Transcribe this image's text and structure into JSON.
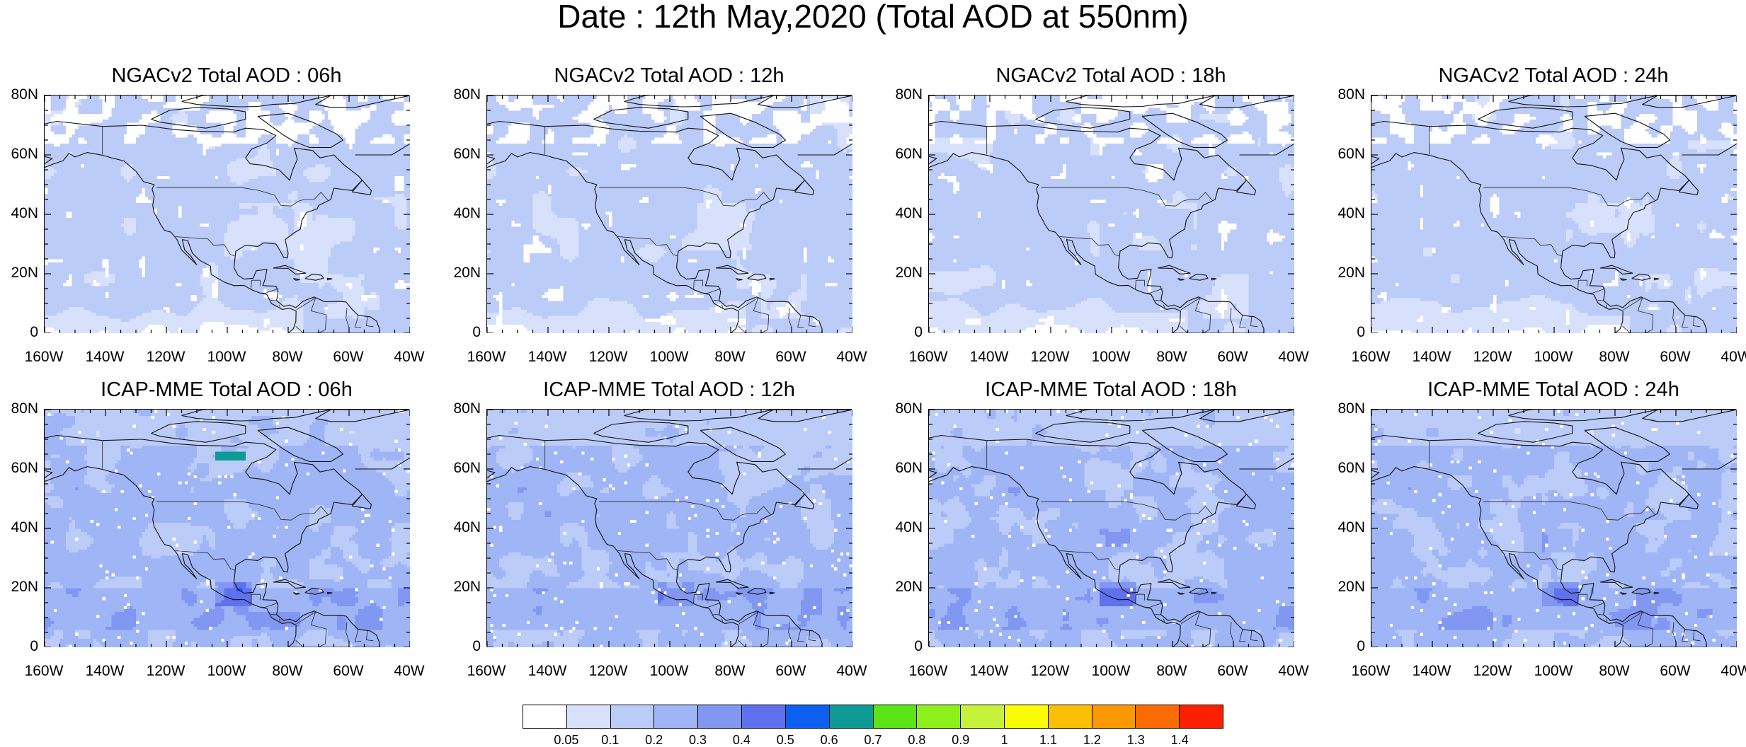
{
  "title": "Date : 12th May,2020 (Total AOD at 550nm)",
  "panels": [
    {
      "title": "NGACv2 Total AOD : 06h",
      "model": "NGAC",
      "hour": 6
    },
    {
      "title": "NGACv2 Total AOD : 12h",
      "model": "NGAC",
      "hour": 12
    },
    {
      "title": "NGACv2 Total AOD : 18h",
      "model": "NGAC",
      "hour": 18
    },
    {
      "title": "NGACv2 Total AOD : 24h",
      "model": "NGAC",
      "hour": 24
    },
    {
      "title": "ICAP-MME Total AOD : 06h",
      "model": "ICAP",
      "hour": 6
    },
    {
      "title": "ICAP-MME Total AOD : 12h",
      "model": "ICAP",
      "hour": 12
    },
    {
      "title": "ICAP-MME Total AOD : 18h",
      "model": "ICAP",
      "hour": 18
    },
    {
      "title": "ICAP-MME Total AOD : 24h",
      "model": "ICAP",
      "hour": 24
    }
  ],
  "axes": {
    "lat_labels": [
      "80N",
      "60N",
      "40N",
      "20N",
      "0"
    ],
    "lon_labels": [
      "160W",
      "140W",
      "120W",
      "100W",
      "80W",
      "60W",
      "40W"
    ],
    "lat_range": [
      0,
      80
    ],
    "lon_range": [
      -160,
      -40
    ]
  },
  "colorbar": {
    "labels": [
      "0.05",
      "0.1",
      "0.2",
      "0.3",
      "0.4",
      "0.5",
      "0.6",
      "0.7",
      "0.8",
      "0.9",
      "1",
      "1.1",
      "1.2",
      "1.3",
      "1.4"
    ],
    "colors": [
      "#ffffff",
      "#d7e1fb",
      "#bcccf8",
      "#9fb5f5",
      "#8197f2",
      "#5f71ee",
      "#0d5ff0",
      "#0e9b96",
      "#5be417",
      "#8ef01a",
      "#c6f33a",
      "#fbfb04",
      "#fbc004",
      "#fb9804",
      "#fb6b04",
      "#fc2001"
    ]
  }
}
